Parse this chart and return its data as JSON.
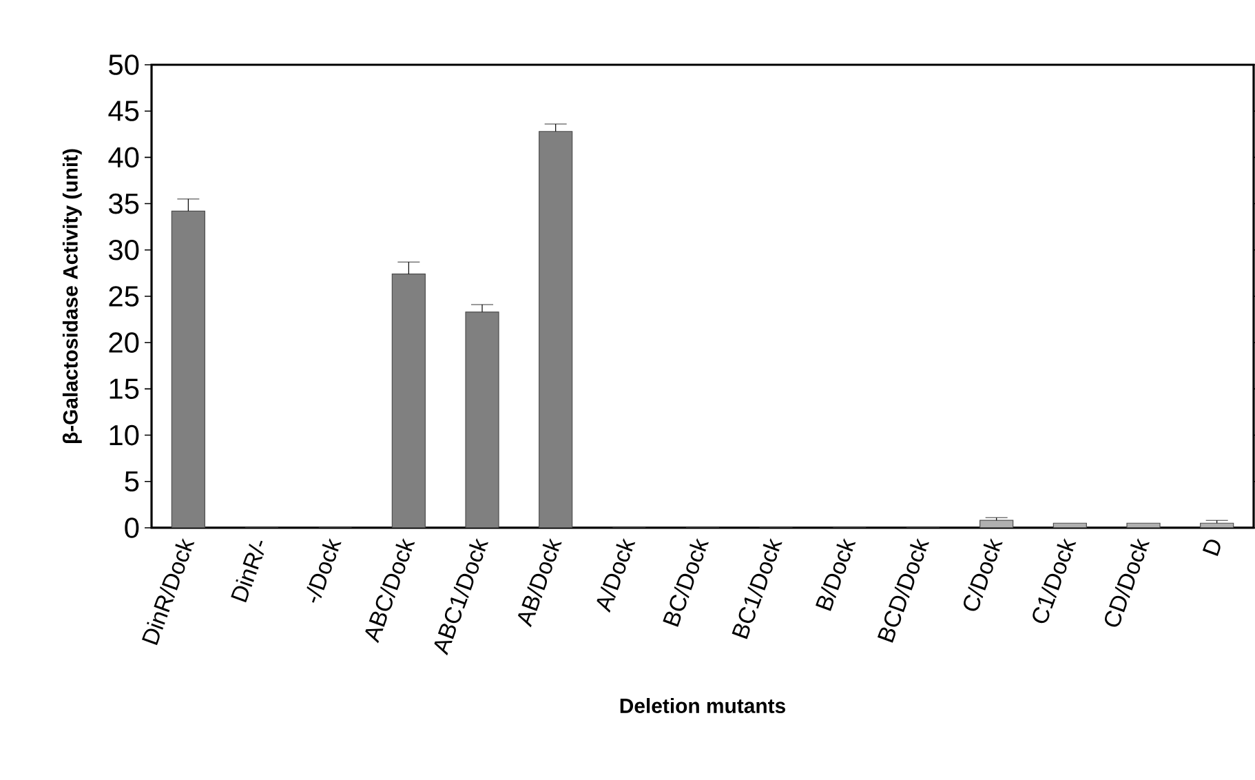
{
  "chart_data": {
    "type": "bar",
    "xlabel": "Deletion mutants",
    "ylabel": "β-Galactosidase Activity (unit)",
    "categories": [
      "DinR/Dock",
      "DinR/-",
      "-/Dock",
      "ABC/Dock",
      "ABC1/Dock",
      "AB/Dock",
      "A/Dock",
      "BC/Dock",
      "BC1/Dock",
      "B/Dock",
      "BCD/Dock",
      "C/Dock",
      "C1/Dock",
      "CD/Dock",
      "D"
    ],
    "values": [
      34.2,
      0,
      0,
      27.4,
      23.3,
      42.8,
      0,
      0,
      0,
      0,
      0,
      0.8,
      0.5,
      0.5,
      0.5
    ],
    "errors": [
      1.3,
      null,
      null,
      1.3,
      0.8,
      0.8,
      null,
      null,
      null,
      null,
      null,
      0.3,
      null,
      null,
      0.3
    ],
    "colors": [
      "#808080",
      "#808080",
      "#808080",
      "#808080",
      "#808080",
      "#808080",
      "#808080",
      "#808080",
      "#808080",
      "#808080",
      "#808080",
      "#b0b0b0",
      "#b0b0b0",
      "#b0b0b0",
      "#b0b0b0"
    ],
    "ylim": [
      0,
      50
    ],
    "yticks": [
      0,
      5,
      10,
      15,
      20,
      25,
      30,
      35,
      40,
      45,
      50
    ],
    "grid": false
  }
}
